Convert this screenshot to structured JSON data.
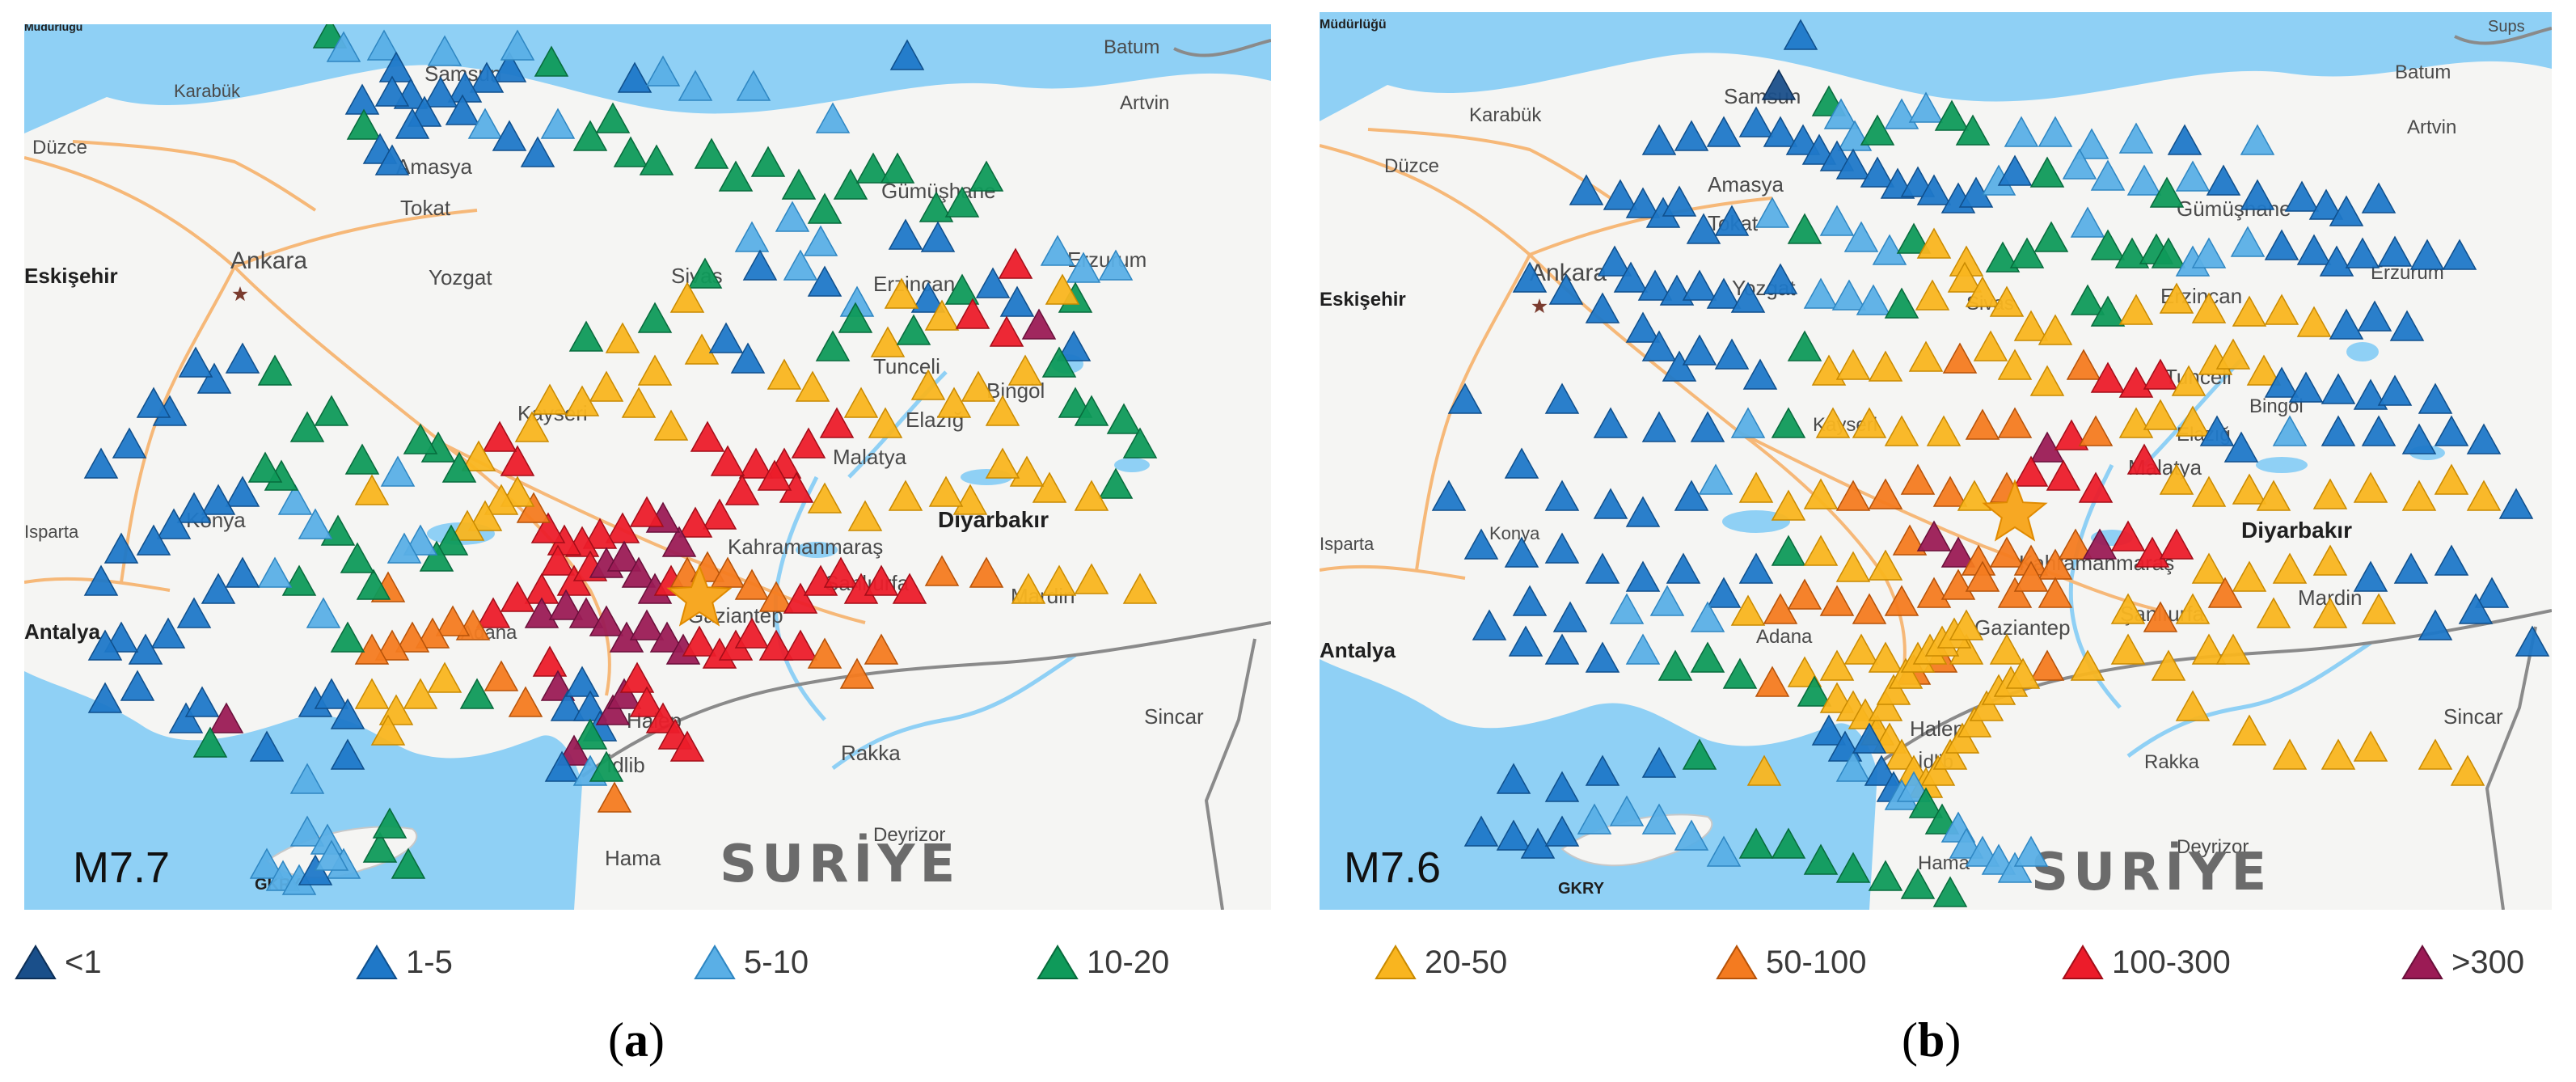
{
  "panels": [
    {
      "id": "a",
      "magnitude": "M7.7",
      "caption_letter": "a",
      "places": [
        {
          "name": "Karabük"
        },
        {
          "name": "Batum"
        },
        {
          "name": "Düzce"
        },
        {
          "name": "Artvin"
        },
        {
          "name": "Ankara"
        },
        {
          "name": "Eskişehir"
        },
        {
          "name": "Samsun"
        },
        {
          "name": "Amasya"
        },
        {
          "name": "Tokat"
        },
        {
          "name": "Yozgat"
        },
        {
          "name": "Sivas"
        },
        {
          "name": "Gümüşhane"
        },
        {
          "name": "Erzincan"
        },
        {
          "name": "Erzurum"
        },
        {
          "name": "Tunceli"
        },
        {
          "name": "Bingöl"
        },
        {
          "name": "Kayseri"
        },
        {
          "name": "Elazığ"
        },
        {
          "name": "Malatya"
        },
        {
          "name": "Diyarbakır"
        },
        {
          "name": "Konya"
        },
        {
          "name": "Isparta"
        },
        {
          "name": "Kahramanmaraş"
        },
        {
          "name": "Şanlıurfa"
        },
        {
          "name": "Mardin"
        },
        {
          "name": "Antalya"
        },
        {
          "name": "Adana"
        },
        {
          "name": "Gaziantep"
        },
        {
          "name": "Halep"
        },
        {
          "name": "Rakka"
        },
        {
          "name": "Sincar"
        },
        {
          "name": "İdlib"
        },
        {
          "name": "Hama"
        },
        {
          "name": "Deyrizor"
        },
        {
          "name": "GKRY"
        },
        {
          "name": "Müdürlüğü"
        }
      ],
      "country_label": "SURİYE"
    },
    {
      "id": "b",
      "magnitude": "M7.6",
      "caption_letter": "b",
      "places": [
        {
          "name": "Müdürlüğü"
        },
        {
          "name": "Sups"
        },
        {
          "name": "Karabük"
        },
        {
          "name": "Batum"
        },
        {
          "name": "Düzce"
        },
        {
          "name": "Artvin"
        },
        {
          "name": "Ankara"
        },
        {
          "name": "Eskişehir"
        },
        {
          "name": "Samsun"
        },
        {
          "name": "Amasya"
        },
        {
          "name": "Tokat"
        },
        {
          "name": "Yozgat"
        },
        {
          "name": "Sivas"
        },
        {
          "name": "Gümüşhane"
        },
        {
          "name": "Erzincan"
        },
        {
          "name": "Erzurum"
        },
        {
          "name": "Tunceli"
        },
        {
          "name": "Bingöl"
        },
        {
          "name": "Kayseri"
        },
        {
          "name": "Elazığ"
        },
        {
          "name": "Malatya"
        },
        {
          "name": "Diyarbakır"
        },
        {
          "name": "Konya"
        },
        {
          "name": "Isparta"
        },
        {
          "name": "Kahramanmaraş"
        },
        {
          "name": "Şanlıurfa"
        },
        {
          "name": "Mardin"
        },
        {
          "name": "Antalya"
        },
        {
          "name": "Adana"
        },
        {
          "name": "Gaziantep"
        },
        {
          "name": "Halep"
        },
        {
          "name": "Rakka"
        },
        {
          "name": "Sincar"
        },
        {
          "name": "İdlib"
        },
        {
          "name": "Hama"
        },
        {
          "name": "Deyrizor"
        },
        {
          "name": "GKRY"
        }
      ],
      "country_label": "SURİYE"
    }
  ],
  "legend": [
    {
      "label": "<1",
      "color": "#1a4f8a"
    },
    {
      "label": "1-5",
      "color": "#1f78c8"
    },
    {
      "label": "5-10",
      "color": "#5aafe6"
    },
    {
      "label": "10-20",
      "color": "#0f9a5a"
    },
    {
      "label": "20-50",
      "color": "#f9b51f"
    },
    {
      "label": "50-100",
      "color": "#f47b20"
    },
    {
      "label": "100-300",
      "color": "#ec1c2a"
    },
    {
      "label": ">300",
      "color": "#9b1b55"
    }
  ],
  "colors": {
    "sea": "#8fd0f5",
    "land": "#f5f5f3",
    "road": "#f6b878",
    "border": "#8a8a8a",
    "epicenter": "#f7a823"
  }
}
